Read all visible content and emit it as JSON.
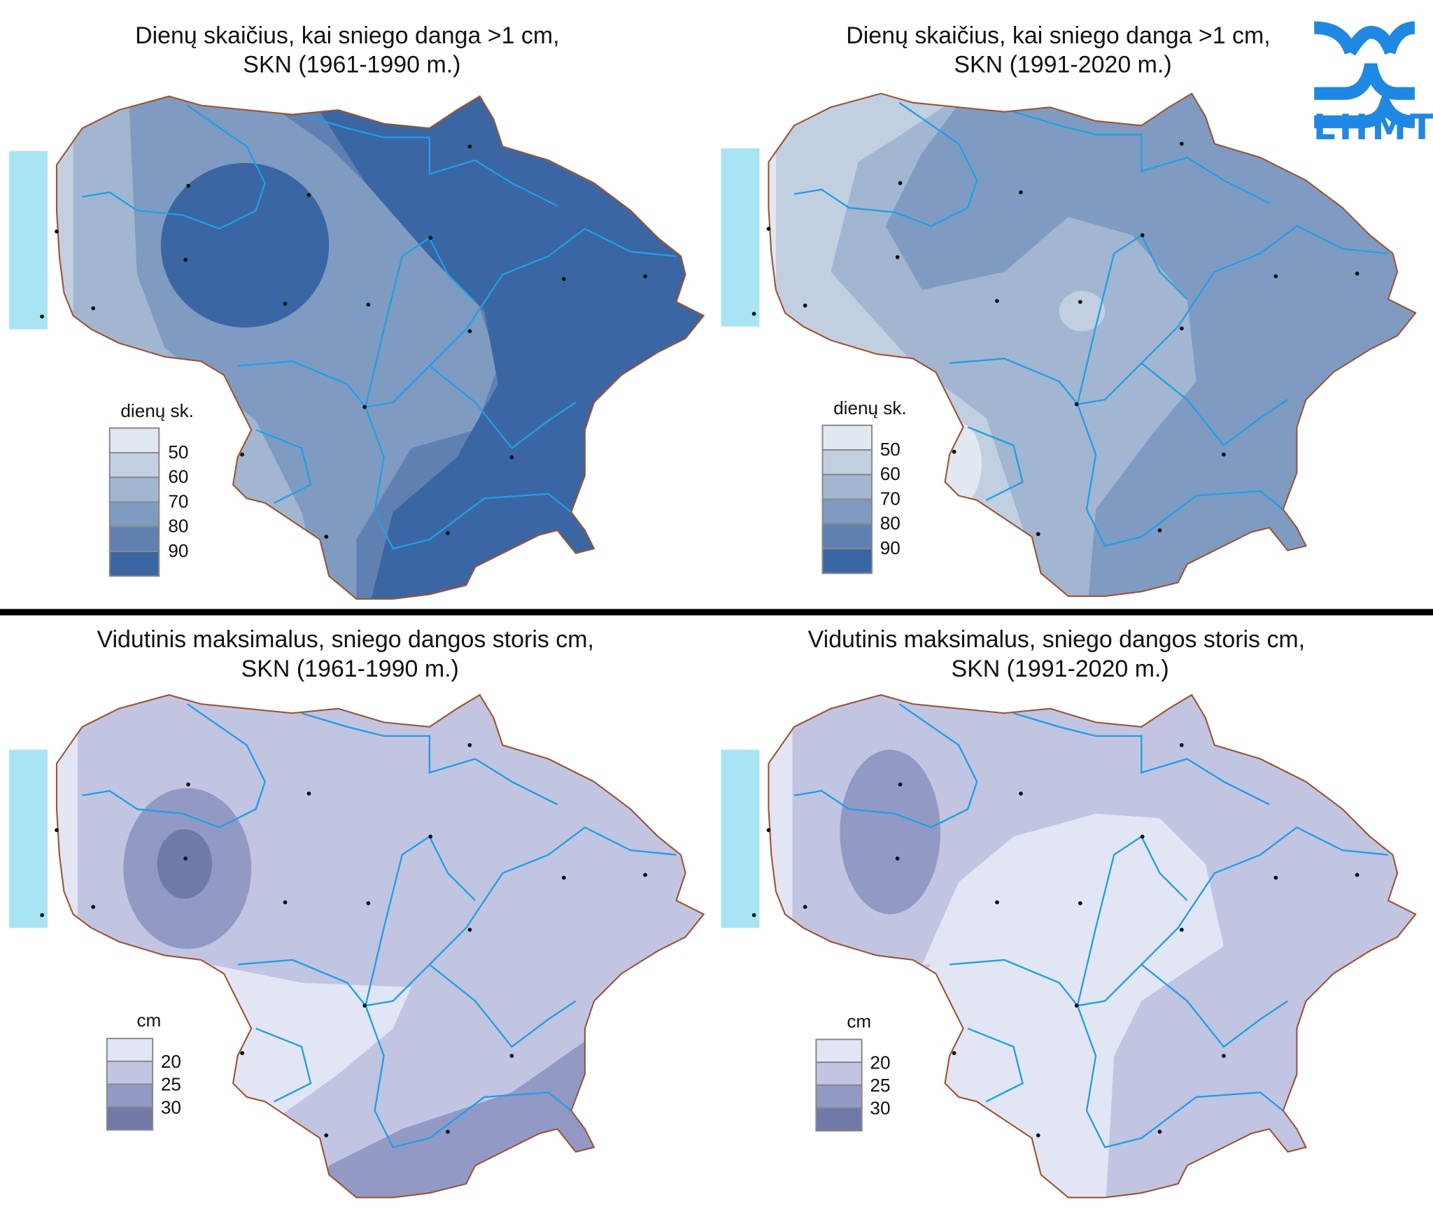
{
  "logo": {
    "text": "LHMT",
    "color": "#1e88e5"
  },
  "maps": [
    {
      "title_line1": "Dienų skaičius, kai sniego danga >1 cm,",
      "title_line2": "SKN (1961-1990 m.)",
      "legend": {
        "title": "dienų sk.",
        "labels": [
          "50",
          "60",
          "70",
          "80",
          "90"
        ]
      }
    },
    {
      "title_line1": "Dienų skaičius, kai sniego danga >1 cm,",
      "title_line2": "SKN (1991-2020 m.)",
      "legend": {
        "title": "dienų sk.",
        "labels": [
          "50",
          "60",
          "70",
          "80",
          "90"
        ]
      }
    },
    {
      "title_line1": "Vidutinis maksimalus, sniego dangos storis cm,",
      "title_line2": "SKN (1961-1990 m.)",
      "legend": {
        "title": "cm",
        "labels": [
          "20",
          "25",
          "30"
        ]
      }
    },
    {
      "title_line1": "Vidutinis maksimalus, sniego dangos storis cm,",
      "title_line2": "SKN (1991-2020 m.)",
      "legend": {
        "title": "cm",
        "labels": [
          "20",
          "25",
          "30"
        ]
      }
    }
  ],
  "colors": {
    "days": [
      "#e1e8ef",
      "#c2cfe0",
      "#a3b6d1",
      "#7f9bc2",
      "#5f80b1",
      "#3a67a3"
    ],
    "depth": [
      "#e2e5f4",
      "#c1c5e2",
      "#9399c5",
      "#6f7aa8"
    ],
    "sea": "#a8e4f4",
    "river": "#1ea0e6",
    "border": "#a0522d"
  }
}
